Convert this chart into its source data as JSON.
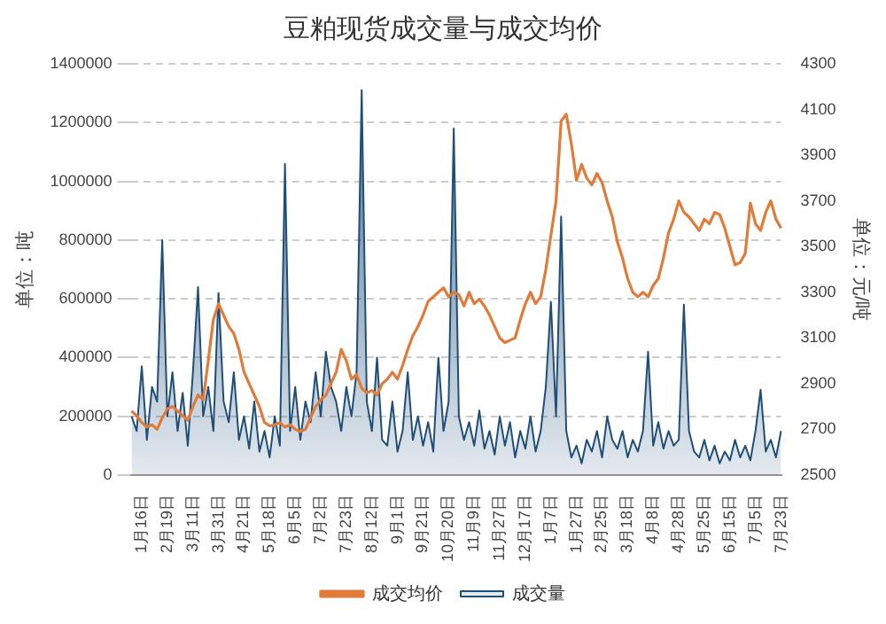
{
  "chart_data": {
    "type": "line",
    "title": "豆粕现货成交量与成交均价",
    "ylabel": "单位：吨",
    "y2label": "单位：元/吨",
    "categories": [
      null,
      null,
      "1月16日",
      null,
      null,
      null,
      null,
      "2月19日",
      null,
      null,
      null,
      null,
      "3月11日",
      null,
      null,
      null,
      null,
      "3月31日",
      null,
      null,
      null,
      null,
      "4月21日",
      null,
      null,
      null,
      null,
      "5月18日",
      null,
      null,
      null,
      null,
      "6月5日",
      null,
      null,
      null,
      null,
      "7月2日",
      null,
      null,
      null,
      null,
      "7月23日",
      null,
      null,
      null,
      null,
      "8月12日",
      null,
      null,
      null,
      null,
      "9月1日",
      null,
      null,
      null,
      null,
      "9月21日",
      null,
      null,
      null,
      null,
      "10月20日",
      null,
      null,
      null,
      null,
      "11月9日",
      null,
      null,
      null,
      null,
      "11月27日",
      null,
      null,
      null,
      null,
      "12月17日",
      null,
      null,
      null,
      null,
      "1月7日",
      null,
      null,
      null,
      null,
      "1月27日",
      null,
      null,
      null,
      null,
      "2月25日",
      null,
      null,
      null,
      null,
      "3月18日",
      null,
      null,
      null,
      null,
      "4月8日",
      null,
      null,
      null,
      null,
      "4月28日",
      null,
      null,
      null,
      null,
      "5月25日",
      null,
      null,
      null,
      null,
      "6月15日",
      null,
      null,
      null,
      null,
      "7月5日",
      null,
      null,
      null,
      null,
      "7月23日"
    ],
    "series": [
      {
        "name": "成交量",
        "type": "area",
        "color": "#1f4e79",
        "values": [
          200000,
          150000,
          370000,
          120000,
          300000,
          250000,
          800000,
          200000,
          350000,
          150000,
          280000,
          100000,
          350000,
          640000,
          200000,
          300000,
          150000,
          620000,
          250000,
          180000,
          350000,
          120000,
          200000,
          90000,
          250000,
          80000,
          150000,
          60000,
          200000,
          100000,
          1060000,
          150000,
          300000,
          120000,
          250000,
          180000,
          350000,
          200000,
          420000,
          300000,
          250000,
          150000,
          300000,
          200000,
          350000,
          1310000,
          250000,
          150000,
          400000,
          120000,
          100000,
          250000,
          80000,
          150000,
          350000,
          120000,
          200000,
          100000,
          180000,
          80000,
          400000,
          150000,
          250000,
          1180000,
          200000,
          120000,
          180000,
          100000,
          220000,
          90000,
          150000,
          70000,
          200000,
          100000,
          180000,
          60000,
          150000,
          90000,
          200000,
          80000,
          150000,
          300000,
          590000,
          200000,
          880000,
          150000,
          60000,
          100000,
          40000,
          120000,
          80000,
          150000,
          60000,
          200000,
          120000,
          90000,
          150000,
          60000,
          120000,
          80000,
          150000,
          420000,
          100000,
          180000,
          90000,
          150000,
          100000,
          120000,
          580000,
          150000,
          80000,
          60000,
          120000,
          50000,
          100000,
          40000,
          80000,
          50000,
          120000,
          60000,
          100000,
          50000,
          150000,
          290000,
          80000,
          120000,
          60000,
          150000
        ]
      },
      {
        "name": "成交均价",
        "type": "line",
        "axis": "y2",
        "color": "#e07b39",
        "values": [
          2780,
          2760,
          2730,
          2710,
          2720,
          2700,
          2750,
          2790,
          2800,
          2780,
          2760,
          2740,
          2800,
          2850,
          2830,
          3000,
          3180,
          3250,
          3200,
          3150,
          3120,
          3050,
          2950,
          2900,
          2850,
          2800,
          2730,
          2715,
          2720,
          2730,
          2710,
          2720,
          2700,
          2690,
          2700,
          2750,
          2800,
          2830,
          2850,
          2900,
          2950,
          3050,
          3000,
          2920,
          2940,
          2880,
          2860,
          2870,
          2850,
          2900,
          2920,
          2950,
          2920,
          2980,
          3050,
          3110,
          3150,
          3200,
          3260,
          3280,
          3300,
          3320,
          3280,
          3300,
          3290,
          3240,
          3300,
          3250,
          3270,
          3240,
          3200,
          3150,
          3100,
          3080,
          3090,
          3100,
          3180,
          3250,
          3300,
          3250,
          3280,
          3400,
          3550,
          3700,
          4050,
          4080,
          3950,
          3790,
          3860,
          3800,
          3770,
          3820,
          3780,
          3700,
          3630,
          3520,
          3450,
          3360,
          3300,
          3280,
          3300,
          3280,
          3330,
          3360,
          3450,
          3560,
          3620,
          3700,
          3650,
          3630,
          3600,
          3570,
          3620,
          3600,
          3650,
          3640,
          3580,
          3500,
          3420,
          3430,
          3470,
          3690,
          3600,
          3570,
          3650,
          3700,
          3620,
          3580
        ]
      }
    ],
    "ylim": [
      0,
      1400000
    ],
    "yticks": [
      0,
      200000,
      400000,
      600000,
      800000,
      1000000,
      1200000,
      1400000
    ],
    "y2lim": [
      2500,
      4300
    ],
    "y2ticks": [
      2500,
      2700,
      2900,
      3100,
      3300,
      3500,
      3700,
      3900,
      4100,
      4300
    ],
    "grid": "y",
    "legend": "bottom",
    "marker": "none",
    "line_style": "solid"
  }
}
